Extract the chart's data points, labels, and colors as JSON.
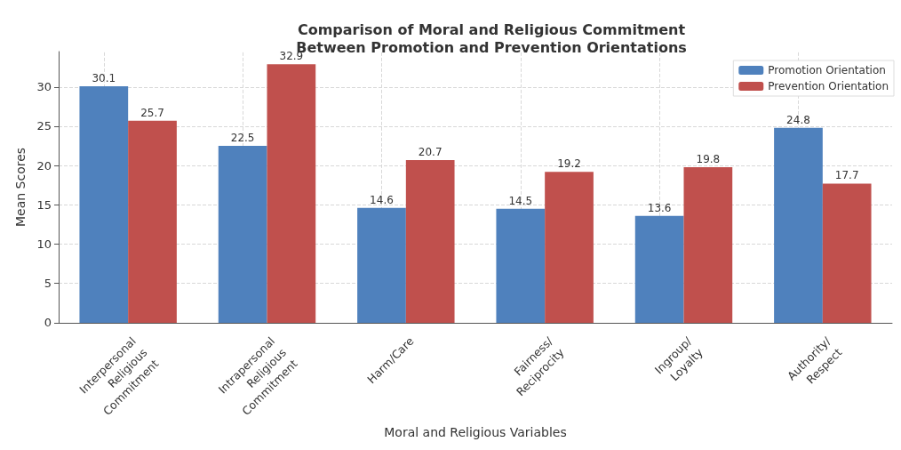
{
  "chart_data": {
    "type": "bar",
    "title": "Comparison of Moral and Religious Commitment\nBetween Promotion and Prevention Orientations",
    "xlabel": "Moral and Religious Variables",
    "ylabel": "Mean Scores",
    "categories": [
      "Interpersonal\nReligious\nCommitment",
      "Intrapersonal\nReligious\nCommitment",
      "Harm/Care",
      "Fairness/\nReciprocity",
      "Ingroup/\nLoyalty",
      "Authority/\nRespect"
    ],
    "series": [
      {
        "name": "Promotion Orientation",
        "color": "#4f81bd",
        "values": [
          30.1,
          22.5,
          14.6,
          14.5,
          13.6,
          24.8
        ]
      },
      {
        "name": "Prevention Orientation",
        "color": "#c0504d",
        "values": [
          25.7,
          32.9,
          20.7,
          19.2,
          19.8,
          17.7
        ]
      }
    ],
    "ylim": [
      0,
      34.5
    ],
    "yticks": [
      0,
      5,
      10,
      15,
      20,
      25,
      30
    ],
    "grid": true,
    "legend": "top right",
    "data_labels": true
  }
}
